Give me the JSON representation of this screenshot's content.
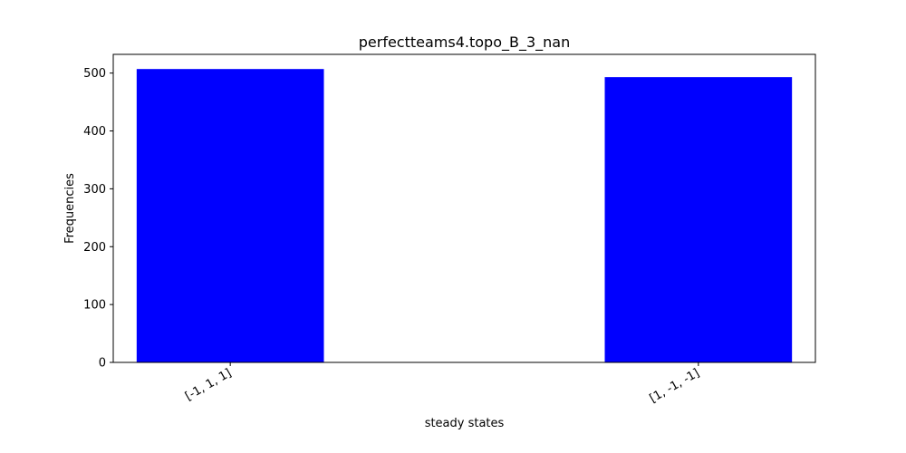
{
  "chart_data": {
    "type": "bar",
    "title": "perfectteams4.topo_B_3_nan",
    "xlabel": "steady states",
    "ylabel": "Frequencies",
    "categories": [
      "[-1, 1, 1]",
      "[1, -1, -1]"
    ],
    "values": [
      507,
      493
    ],
    "ylim": [
      0,
      532.35
    ],
    "yticks": [
      0,
      100,
      200,
      300,
      400,
      500
    ],
    "bar_color": "#0000ff",
    "grid": false,
    "legend": "none"
  }
}
